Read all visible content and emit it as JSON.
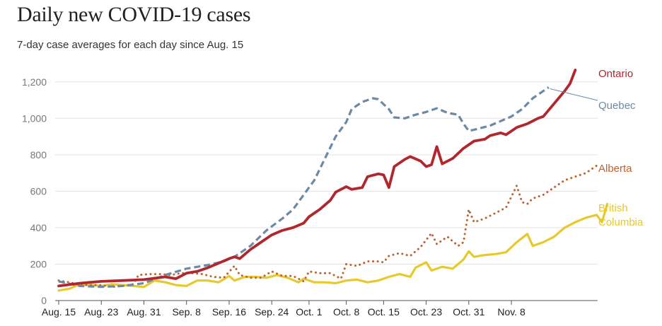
{
  "chart_data": {
    "type": "line",
    "title": "Daily new COVID-19 cases",
    "subtitle": "7-day case averages for each day since Aug. 15",
    "xlabel": "",
    "ylabel": "",
    "ylim": [
      0,
      1300
    ],
    "yticks": [
      0,
      200,
      400,
      600,
      800,
      1000,
      1200
    ],
    "ytick_labels": [
      "0",
      "200",
      "400",
      "600",
      "800",
      "1,000",
      "1,200"
    ],
    "xticks": [
      {
        "day": 0,
        "label": "Aug. 15"
      },
      {
        "day": 8,
        "label": "Aug. 23"
      },
      {
        "day": 16,
        "label": "Aug. 31"
      },
      {
        "day": 24,
        "label": "Sep. 8"
      },
      {
        "day": 32,
        "label": "Sep. 16"
      },
      {
        "day": 40,
        "label": "Sep. 24"
      },
      {
        "day": 47,
        "label": "Oct. 1"
      },
      {
        "day": 54,
        "label": "Oct. 8"
      },
      {
        "day": 61,
        "label": "Oct. 15"
      },
      {
        "day": 69,
        "label": "Oct. 23"
      },
      {
        "day": 77,
        "label": "Oct. 31"
      },
      {
        "day": 85,
        "label": "Nov. 8"
      }
    ],
    "x_unit": "days since Aug. 15",
    "series": [
      {
        "name": "Quebec",
        "label": "Quebec",
        "color": "#6b8aa6",
        "style": "dashed",
        "points": [
          [
            0,
            105
          ],
          [
            4,
            80
          ],
          [
            8,
            75
          ],
          [
            12,
            80
          ],
          [
            16,
            95
          ],
          [
            20,
            140
          ],
          [
            24,
            175
          ],
          [
            28,
            195
          ],
          [
            31,
            215
          ],
          [
            33,
            240
          ],
          [
            36,
            300
          ],
          [
            39,
            385
          ],
          [
            42,
            450
          ],
          [
            44,
            500
          ],
          [
            46,
            580
          ],
          [
            48,
            660
          ],
          [
            50,
            780
          ],
          [
            52,
            900
          ],
          [
            54,
            980
          ],
          [
            55,
            1050
          ],
          [
            57,
            1090
          ],
          [
            59,
            1110
          ],
          [
            60,
            1105
          ],
          [
            62,
            1050
          ],
          [
            63,
            1005
          ],
          [
            65,
            1000
          ],
          [
            67,
            1020
          ],
          [
            69,
            1035
          ],
          [
            71,
            1055
          ],
          [
            73,
            1030
          ],
          [
            75,
            1020
          ],
          [
            76,
            970
          ],
          [
            77,
            930
          ],
          [
            79,
            945
          ],
          [
            81,
            960
          ],
          [
            83,
            985
          ],
          [
            85,
            1010
          ],
          [
            87,
            1050
          ],
          [
            89,
            1110
          ],
          [
            91,
            1150
          ],
          [
            92,
            1170
          ]
        ]
      },
      {
        "name": "Ontario",
        "label": "Ontario",
        "color": "#b0272d",
        "style": "solid",
        "points": [
          [
            0,
            80
          ],
          [
            4,
            95
          ],
          [
            8,
            105
          ],
          [
            12,
            110
          ],
          [
            16,
            115
          ],
          [
            20,
            130
          ],
          [
            22,
            120
          ],
          [
            24,
            150
          ],
          [
            26,
            160
          ],
          [
            28,
            180
          ],
          [
            30,
            205
          ],
          [
            32,
            230
          ],
          [
            33,
            240
          ],
          [
            34,
            230
          ],
          [
            36,
            280
          ],
          [
            38,
            320
          ],
          [
            40,
            360
          ],
          [
            42,
            385
          ],
          [
            44,
            400
          ],
          [
            46,
            425
          ],
          [
            47,
            460
          ],
          [
            49,
            500
          ],
          [
            51,
            550
          ],
          [
            52,
            595
          ],
          [
            54,
            625
          ],
          [
            55,
            610
          ],
          [
            57,
            620
          ],
          [
            58,
            680
          ],
          [
            60,
            695
          ],
          [
            61,
            690
          ],
          [
            62,
            620
          ],
          [
            63,
            735
          ],
          [
            65,
            775
          ],
          [
            66,
            790
          ],
          [
            68,
            765
          ],
          [
            69,
            735
          ],
          [
            70,
            745
          ],
          [
            71,
            845
          ],
          [
            72,
            750
          ],
          [
            74,
            780
          ],
          [
            76,
            835
          ],
          [
            78,
            875
          ],
          [
            80,
            885
          ],
          [
            81,
            905
          ],
          [
            83,
            920
          ],
          [
            84,
            910
          ],
          [
            86,
            950
          ],
          [
            88,
            970
          ],
          [
            90,
            1000
          ],
          [
            91,
            1010
          ],
          [
            93,
            1080
          ],
          [
            95,
            1150
          ],
          [
            96,
            1190
          ],
          [
            97,
            1265
          ]
        ]
      },
      {
        "name": "Alberta",
        "label": "Alberta",
        "color": "#c0622e",
        "style": "dotted",
        "points": [
          [
            0,
            110
          ],
          [
            2,
            100
          ],
          [
            4,
            85
          ],
          [
            6,
            85
          ],
          [
            8,
            85
          ],
          [
            10,
            75
          ],
          [
            12,
            80
          ],
          [
            14,
            90
          ],
          [
            15,
            140
          ],
          [
            17,
            145
          ],
          [
            19,
            145
          ],
          [
            21,
            140
          ],
          [
            23,
            150
          ],
          [
            25,
            150
          ],
          [
            27,
            145
          ],
          [
            29,
            130
          ],
          [
            31,
            125
          ],
          [
            33,
            190
          ],
          [
            34,
            140
          ],
          [
            36,
            125
          ],
          [
            38,
            125
          ],
          [
            40,
            160
          ],
          [
            42,
            135
          ],
          [
            44,
            135
          ],
          [
            46,
            105
          ],
          [
            47,
            160
          ],
          [
            49,
            150
          ],
          [
            51,
            150
          ],
          [
            53,
            120
          ],
          [
            54,
            200
          ],
          [
            56,
            190
          ],
          [
            58,
            215
          ],
          [
            60,
            215
          ],
          [
            61,
            210
          ],
          [
            62,
            245
          ],
          [
            64,
            260
          ],
          [
            66,
            245
          ],
          [
            68,
            295
          ],
          [
            70,
            370
          ],
          [
            71,
            310
          ],
          [
            73,
            350
          ],
          [
            75,
            300
          ],
          [
            76,
            320
          ],
          [
            77,
            500
          ],
          [
            78,
            430
          ],
          [
            80,
            450
          ],
          [
            82,
            480
          ],
          [
            84,
            510
          ],
          [
            86,
            630
          ],
          [
            87,
            540
          ],
          [
            88,
            530
          ],
          [
            89,
            560
          ],
          [
            91,
            580
          ],
          [
            93,
            620
          ],
          [
            95,
            660
          ],
          [
            97,
            680
          ],
          [
            99,
            700
          ],
          [
            101,
            740
          ]
        ]
      },
      {
        "name": "British Columbia",
        "label": [
          "British",
          "Columbia"
        ],
        "color": "#e8c92b",
        "style": "solid",
        "points": [
          [
            0,
            55
          ],
          [
            2,
            65
          ],
          [
            4,
            90
          ],
          [
            6,
            85
          ],
          [
            8,
            80
          ],
          [
            10,
            90
          ],
          [
            12,
            85
          ],
          [
            14,
            80
          ],
          [
            16,
            75
          ],
          [
            18,
            110
          ],
          [
            20,
            100
          ],
          [
            22,
            85
          ],
          [
            24,
            80
          ],
          [
            26,
            110
          ],
          [
            28,
            110
          ],
          [
            30,
            100
          ],
          [
            32,
            135
          ],
          [
            33,
            110
          ],
          [
            35,
            130
          ],
          [
            37,
            130
          ],
          [
            39,
            125
          ],
          [
            41,
            140
          ],
          [
            43,
            125
          ],
          [
            45,
            100
          ],
          [
            46,
            120
          ],
          [
            48,
            100
          ],
          [
            50,
            100
          ],
          [
            52,
            95
          ],
          [
            54,
            110
          ],
          [
            56,
            115
          ],
          [
            58,
            100
          ],
          [
            60,
            110
          ],
          [
            62,
            130
          ],
          [
            64,
            145
          ],
          [
            66,
            130
          ],
          [
            67,
            180
          ],
          [
            69,
            210
          ],
          [
            70,
            165
          ],
          [
            72,
            185
          ],
          [
            74,
            175
          ],
          [
            76,
            225
          ],
          [
            77,
            270
          ],
          [
            78,
            240
          ],
          [
            80,
            250
          ],
          [
            82,
            255
          ],
          [
            84,
            265
          ],
          [
            86,
            320
          ],
          [
            88,
            365
          ],
          [
            89,
            300
          ],
          [
            91,
            320
          ],
          [
            93,
            350
          ],
          [
            95,
            400
          ],
          [
            97,
            430
          ],
          [
            99,
            455
          ],
          [
            101,
            470
          ],
          [
            102,
            430
          ],
          [
            103,
            530
          ]
        ]
      }
    ]
  }
}
